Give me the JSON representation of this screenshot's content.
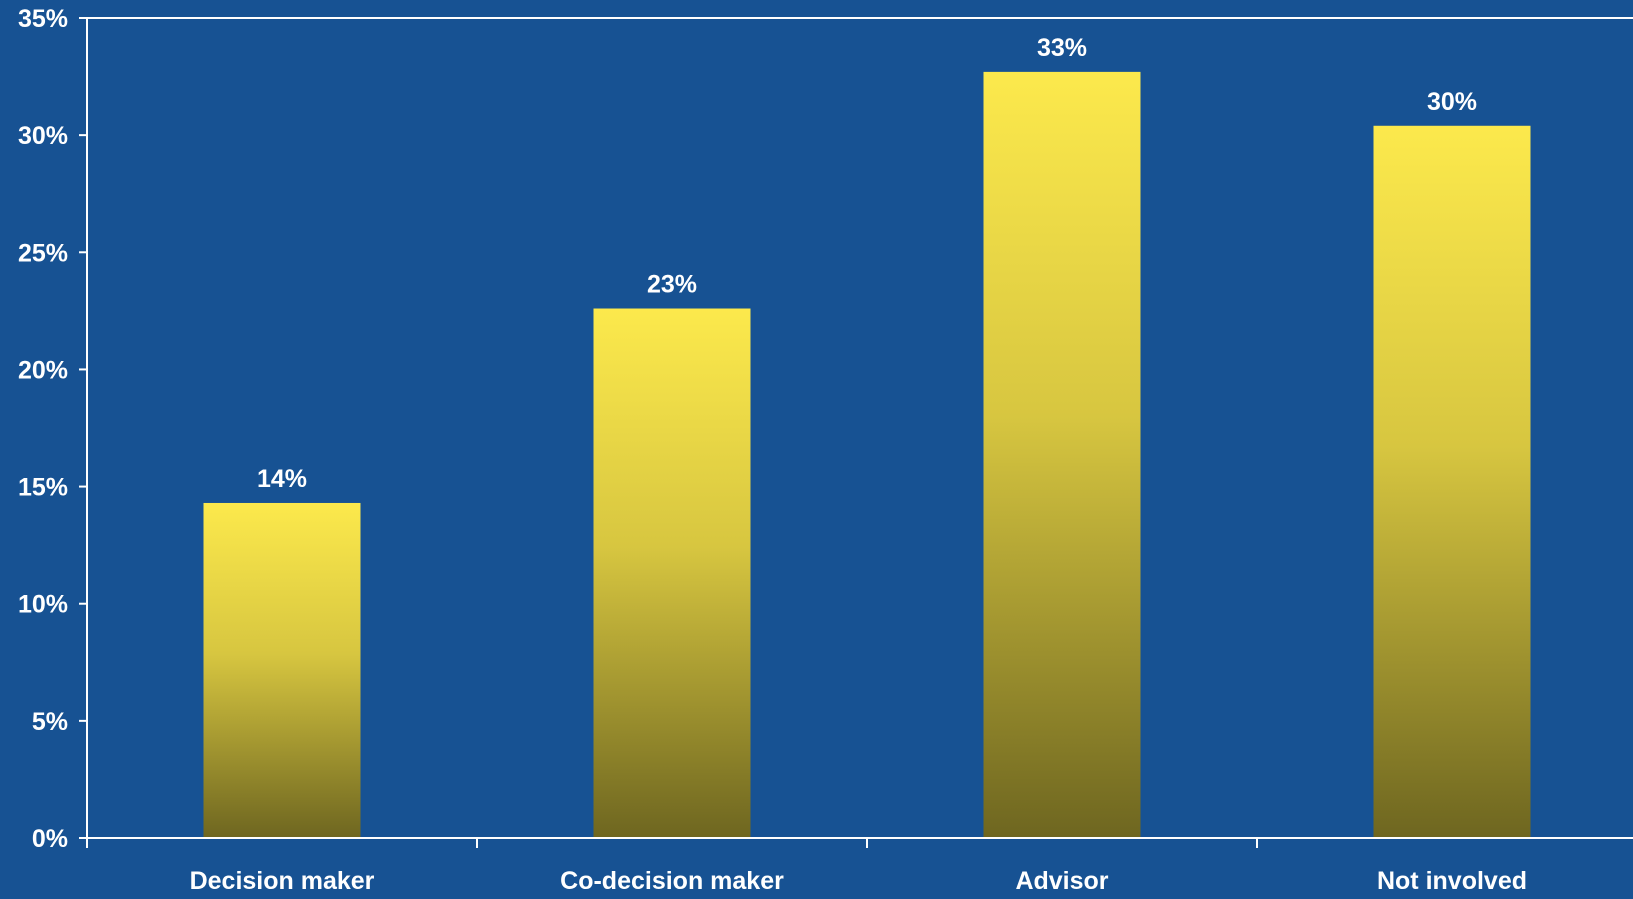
{
  "colors": {
    "background": "#175293",
    "axis": "#ffffff",
    "text": "#ffffff",
    "bar_top": "#FCE94C",
    "bar_bottom": "#6E6620"
  },
  "chart_data": {
    "type": "bar",
    "categories": [
      "Decision maker",
      "Co-decision maker",
      "Advisor",
      "Not involved"
    ],
    "values": [
      14.3,
      22.6,
      32.7,
      30.4
    ],
    "data_labels": [
      "14%",
      "23%",
      "33%",
      "30%"
    ],
    "ylim": [
      0,
      35
    ],
    "yticks": [
      0,
      5,
      10,
      15,
      20,
      25,
      30,
      35
    ],
    "ytick_labels": [
      "0%",
      "5%",
      "10%",
      "15%",
      "20%",
      "25%",
      "30%",
      "35%"
    ],
    "grid": false,
    "legend": "none",
    "bar_fill": "vertical-gradient"
  }
}
